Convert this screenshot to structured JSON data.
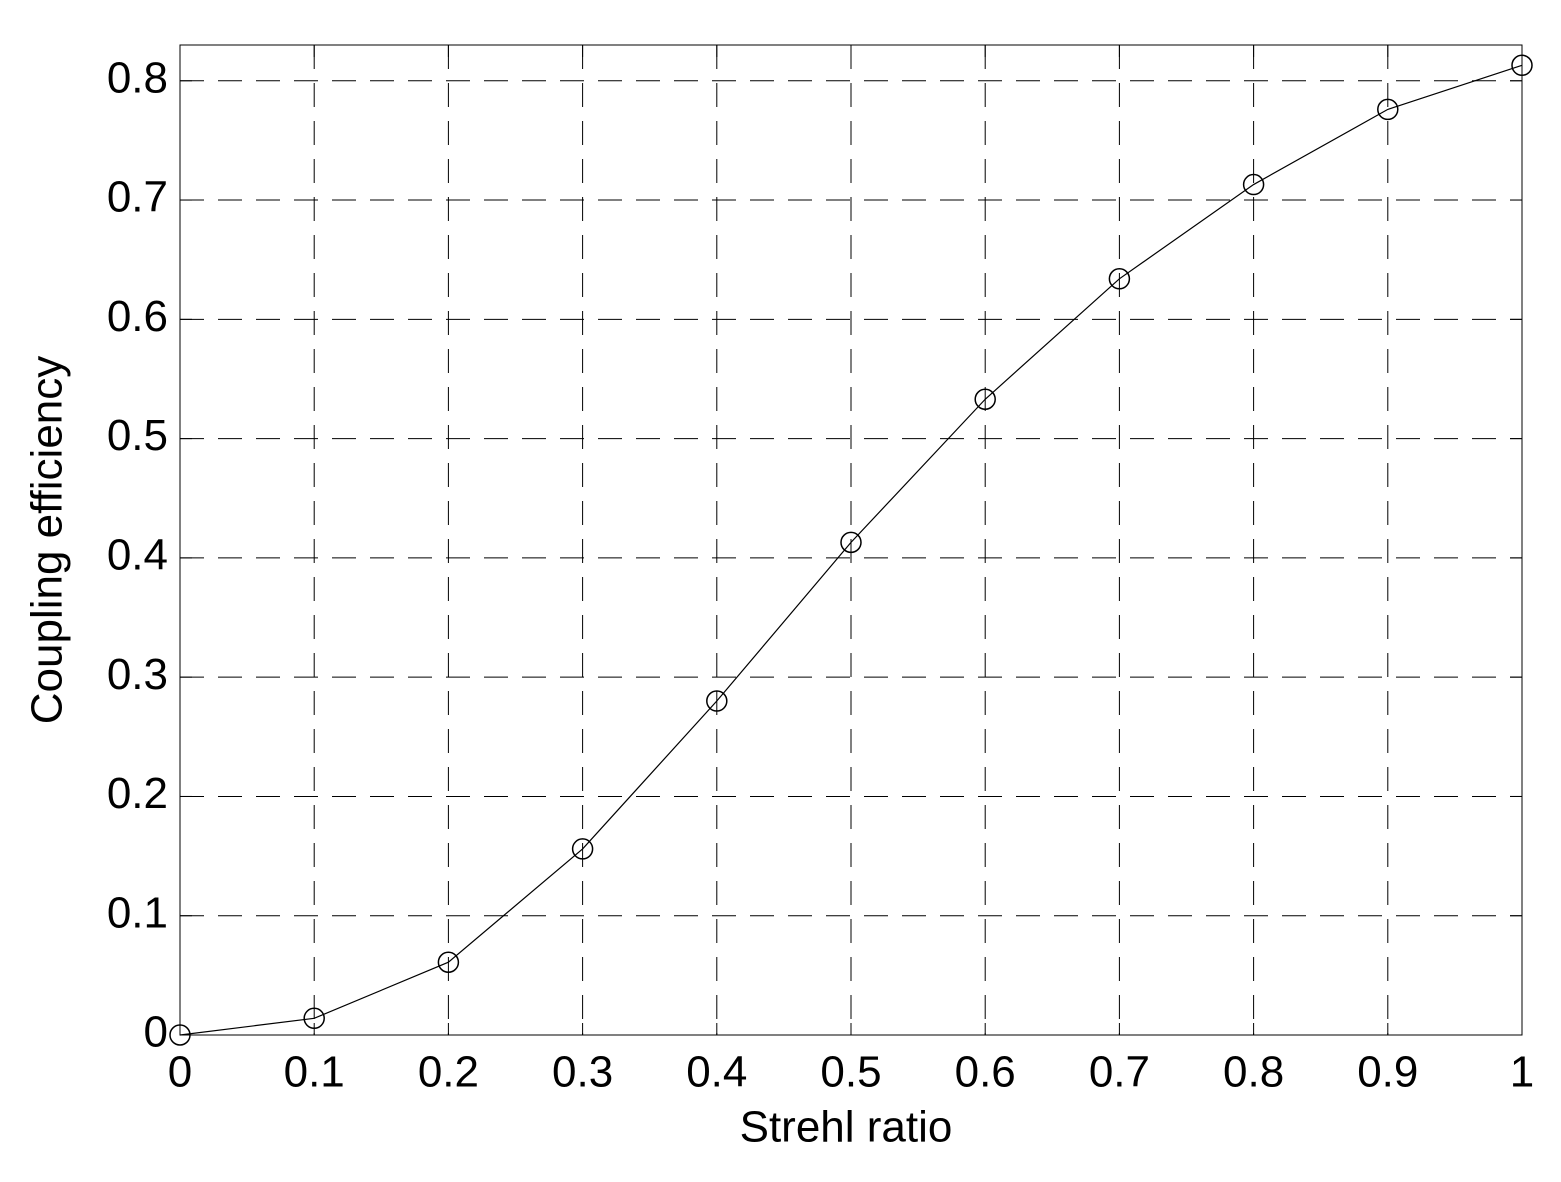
{
  "chart_data": {
    "type": "line",
    "x_label": "Strehl ratio",
    "y_label": "Coupling efficiency",
    "x": [
      0,
      0.1,
      0.2,
      0.3,
      0.4,
      0.5,
      0.6,
      0.7,
      0.8,
      0.9,
      1
    ],
    "series": [
      {
        "color": "#000000",
        "marker": "circle",
        "values": [
          0,
          0.014,
          0.061,
          0.156,
          0.28,
          0.413,
          0.533,
          0.634,
          0.713,
          0.776,
          0.813
        ]
      }
    ],
    "xlim": [
      0,
      1
    ],
    "ylim": [
      0,
      0.83
    ],
    "xticks": [
      0,
      0.1,
      0.2,
      0.3,
      0.4,
      0.5,
      0.6,
      0.7,
      0.8,
      0.9,
      1
    ],
    "yticks": [
      0,
      0.1,
      0.2,
      0.3,
      0.4,
      0.5,
      0.6,
      0.7,
      0.8
    ],
    "grid": true
  }
}
